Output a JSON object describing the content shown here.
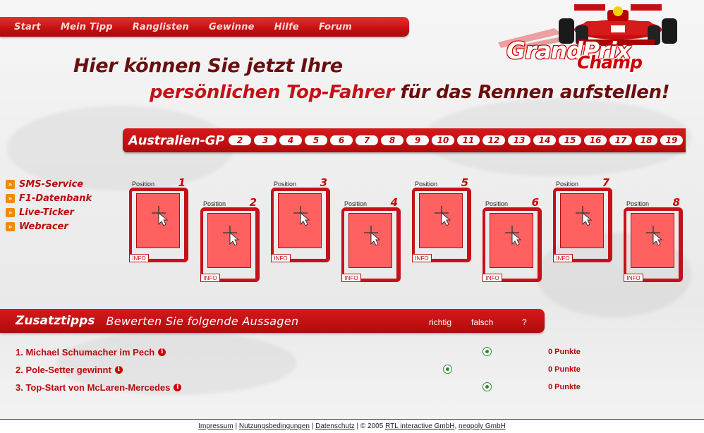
{
  "nav": {
    "items": [
      "Start",
      "Mein Tipp",
      "Ranglisten",
      "Gewinne",
      "Hilfe",
      "Forum"
    ]
  },
  "logo": {
    "line1": "GrandPrix",
    "line2": "Champ"
  },
  "headline": {
    "line1": "Hier können Sie jetzt Ihre",
    "line2_highlight": "persönlichen Top-Fahrer",
    "line2_rest": " für das Rennen aufstellen!"
  },
  "gp": {
    "current": "Australien-GP",
    "races": [
      "2",
      "3",
      "4",
      "5",
      "6",
      "7",
      "8",
      "9",
      "10",
      "11",
      "12",
      "13",
      "14",
      "15",
      "16",
      "17",
      "18",
      "19"
    ]
  },
  "sidebar": {
    "items": [
      "SMS-Service",
      "F1-Datenbank",
      "Live-Ticker",
      "Webracer"
    ]
  },
  "positions": {
    "label": "Position",
    "info_label": "INFO",
    "numbers": [
      "1",
      "2",
      "3",
      "4",
      "5",
      "6",
      "7",
      "8"
    ]
  },
  "zusatz": {
    "title": "Zusatztipps",
    "subtitle": "Bewerten Sie folgende Aussagen",
    "col_richtig": "richtig",
    "col_falsch": "falsch",
    "col_help": "?",
    "questions": [
      {
        "text": "1. Michael Schumacher im Pech",
        "selected": "falsch",
        "points": "0 Punkte"
      },
      {
        "text": "2. Pole-Setter gewinnt",
        "selected": "richtig",
        "points": "0 Punkte"
      },
      {
        "text": "3. Top-Start von McLaren-Mercedes",
        "selected": "falsch",
        "points": "0 Punkte"
      }
    ]
  },
  "footer": {
    "impressum": "Impressum",
    "nutzung": "Nutzungsbedingungen",
    "datenschutz": "Datenschutz",
    "copyright": "© 2005",
    "rtl": "RTL interactive GmbH",
    "neopoly": "neopoly GmbH"
  },
  "colors": {
    "accent_red": "#c4121a",
    "dark_red": "#6a0f0f",
    "card_fill": "#ff6161",
    "radio_green": "#2a8a2a",
    "side_icon": "#f08a00"
  }
}
